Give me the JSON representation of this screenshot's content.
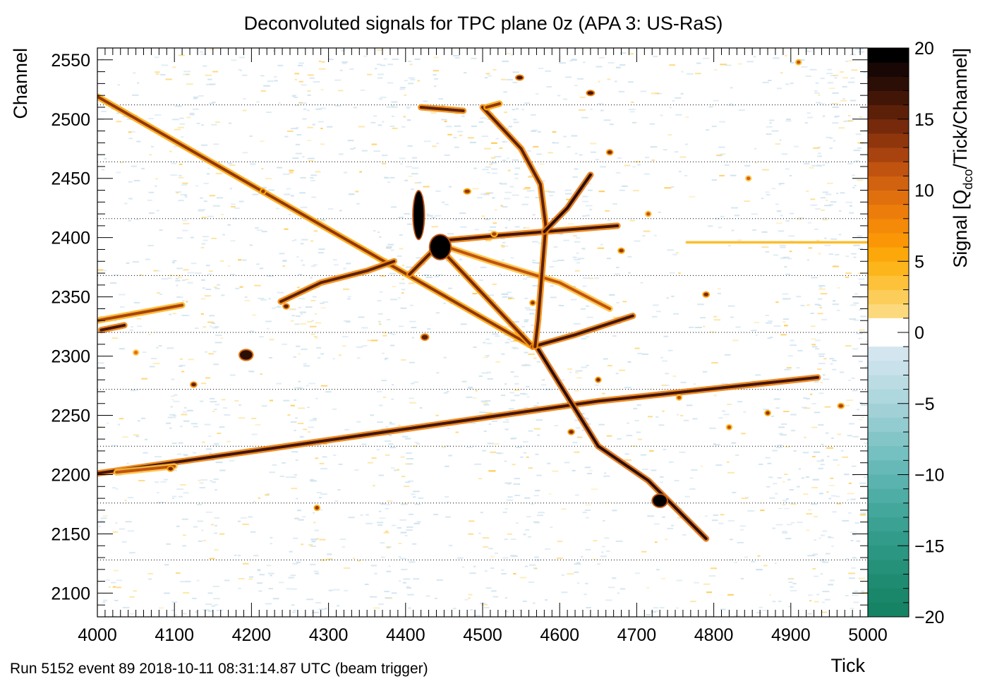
{
  "chart_data": {
    "type": "heatmap",
    "title": "Deconvoluted signals for TPC plane 0z (APA 3: US-RaS)",
    "xlabel": "Tick",
    "ylabel": "Channel",
    "zlabel_main": "Signal [Q",
    "zlabel_sub": "dco",
    "zlabel_rest": "/Tick/Channel]",
    "footer": "Run 5152 event 89 2018-10-11 08:31:14.87 UTC (beam trigger)",
    "xlim": [
      4000,
      5000
    ],
    "ylim": [
      2080,
      2560
    ],
    "zlim": [
      -20,
      20
    ],
    "x_ticks": [
      4000,
      4100,
      4200,
      4300,
      4400,
      4500,
      4600,
      4700,
      4800,
      4900,
      5000
    ],
    "y_ticks": [
      2100,
      2150,
      2200,
      2250,
      2300,
      2350,
      2400,
      2450,
      2500,
      2550
    ],
    "z_ticks": [
      -20,
      -15,
      -10,
      -5,
      0,
      5,
      10,
      15,
      20
    ],
    "dotted_channel_lines": [
      2128,
      2176,
      2224,
      2272,
      2320,
      2368,
      2416,
      2464,
      2512
    ],
    "dead_channel": 2173,
    "palette": {
      "positive": [
        "#fde7a6",
        "#fdd97d",
        "#fdcd5a",
        "#fdc13a",
        "#fdb51c",
        "#fda80a",
        "#fb9707",
        "#f48a08",
        "#ec7d0a",
        "#e0700d",
        "#d1620f",
        "#c05310",
        "#a8430f",
        "#90360d",
        "#762a0b",
        "#5c2009",
        "#421607",
        "#2b0e05",
        "#180704",
        "#000000"
      ],
      "negative": [
        "#dde9f3",
        "#d3e6ef",
        "#c8e1ea",
        "#bcdce4",
        "#afd7de",
        "#a1d1d7",
        "#93ccd0",
        "#84c6c8",
        "#75c0c0",
        "#67b9b7",
        "#5ab3ae",
        "#4eada5",
        "#43a79c",
        "#3aa193",
        "#329b8a",
        "#2b9681",
        "#259179",
        "#1f8c72",
        "#1a876b",
        "#168364"
      ],
      "noise_color": "#cfe3ef"
    },
    "tracks": [
      {
        "points": [
          [
            4000,
            2519
          ],
          [
            4565,
            2308
          ]
        ],
        "intensity": 14
      },
      {
        "points": [
          [
            4000,
            2201
          ],
          [
            4310,
            2230
          ],
          [
            4650,
            2262
          ],
          [
            4935,
            2282
          ]
        ],
        "intensity": 17
      },
      {
        "points": [
          [
            4000,
            2330
          ],
          [
            4110,
            2343
          ]
        ],
        "intensity": 13
      },
      {
        "points": [
          [
            4005,
            2322
          ],
          [
            4035,
            2326
          ]
        ],
        "intensity": 17
      },
      {
        "points": [
          [
            4570,
            2308
          ],
          [
            4650,
            2224
          ],
          [
            4715,
            2195
          ],
          [
            4790,
            2146
          ]
        ],
        "intensity": 18
      },
      {
        "points": [
          [
            4440,
            2394
          ],
          [
            4565,
            2308
          ]
        ],
        "intensity": 15
      },
      {
        "points": [
          [
            4440,
            2397
          ],
          [
            4525,
            2402
          ],
          [
            4675,
            2410
          ]
        ],
        "intensity": 17
      },
      {
        "points": [
          [
            4440,
            2395
          ],
          [
            4510,
            2380
          ],
          [
            4600,
            2362
          ],
          [
            4665,
            2340
          ]
        ],
        "intensity": 12
      },
      {
        "points": [
          [
            4565,
            2308
          ],
          [
            4620,
            2318
          ],
          [
            4695,
            2334
          ]
        ],
        "intensity": 17
      },
      {
        "points": [
          [
            4500,
            2510
          ],
          [
            4550,
            2475
          ],
          [
            4575,
            2445
          ],
          [
            4582,
            2410
          ],
          [
            4572,
            2330
          ],
          [
            4568,
            2308
          ]
        ],
        "intensity": 16
      },
      {
        "points": [
          [
            4580,
            2405
          ],
          [
            4610,
            2425
          ],
          [
            4640,
            2453
          ]
        ],
        "intensity": 18
      },
      {
        "points": [
          [
            4440,
            2392
          ],
          [
            4405,
            2369
          ]
        ],
        "intensity": 16
      },
      {
        "points": [
          [
            4238,
            2346
          ],
          [
            4290,
            2362
          ],
          [
            4350,
            2372
          ],
          [
            4385,
            2380
          ]
        ],
        "intensity": 16
      },
      {
        "points": [
          [
            4420,
            2510
          ],
          [
            4475,
            2507
          ]
        ],
        "intensity": 16
      },
      {
        "points": [
          [
            4522,
            2513
          ],
          [
            4505,
            2510
          ]
        ],
        "intensity": 14
      },
      {
        "points": [
          [
            4025,
            2202
          ],
          [
            4100,
            2207
          ]
        ],
        "intensity": 12
      },
      {
        "points": [
          [
            4765,
            2396
          ],
          [
            5000,
            2396
          ]
        ],
        "intensity": 5
      }
    ],
    "blobs": [
      {
        "x": 4445,
        "y": 2392,
        "w": 26,
        "h": 20,
        "intensity": 20
      },
      {
        "x": 4417,
        "y": 2419,
        "w": 13,
        "h": 40,
        "intensity": 20
      },
      {
        "x": 4193,
        "y": 2301,
        "w": 16,
        "h": 8,
        "intensity": 18
      },
      {
        "x": 4730,
        "y": 2178,
        "w": 18,
        "h": 10,
        "intensity": 20
      },
      {
        "x": 4425,
        "y": 2316,
        "w": 8,
        "h": 4,
        "intensity": 16
      },
      {
        "x": 4548,
        "y": 2535,
        "w": 8,
        "h": 3,
        "intensity": 17
      },
      {
        "x": 4640,
        "y": 2522,
        "w": 8,
        "h": 3,
        "intensity": 17
      },
      {
        "x": 4480,
        "y": 2439,
        "w": 7,
        "h": 3,
        "intensity": 14
      },
      {
        "x": 4515,
        "y": 2403,
        "w": 6,
        "h": 3,
        "intensity": 13
      },
      {
        "x": 4665,
        "y": 2472,
        "w": 6,
        "h": 3,
        "intensity": 15
      },
      {
        "x": 4680,
        "y": 2389,
        "w": 6,
        "h": 3,
        "intensity": 14
      },
      {
        "x": 4615,
        "y": 2236,
        "w": 6,
        "h": 3,
        "intensity": 15
      },
      {
        "x": 4790,
        "y": 2352,
        "w": 6,
        "h": 3,
        "intensity": 15
      },
      {
        "x": 4870,
        "y": 2252,
        "w": 5,
        "h": 3,
        "intensity": 14
      },
      {
        "x": 4755,
        "y": 2265,
        "w": 5,
        "h": 3,
        "intensity": 12
      },
      {
        "x": 4125,
        "y": 2276,
        "w": 6,
        "h": 3,
        "intensity": 16
      },
      {
        "x": 4215,
        "y": 2439,
        "w": 5,
        "h": 3,
        "intensity": 14
      },
      {
        "x": 4285,
        "y": 2172,
        "w": 5,
        "h": 3,
        "intensity": 14
      },
      {
        "x": 4245,
        "y": 2342,
        "w": 6,
        "h": 3,
        "intensity": 16
      },
      {
        "x": 4050,
        "y": 2303,
        "w": 5,
        "h": 3,
        "intensity": 10
      },
      {
        "x": 4650,
        "y": 2280,
        "w": 5,
        "h": 3,
        "intensity": 15
      },
      {
        "x": 4820,
        "y": 2240,
        "w": 5,
        "h": 3,
        "intensity": 12
      },
      {
        "x": 4965,
        "y": 2258,
        "w": 6,
        "h": 3,
        "intensity": 13
      },
      {
        "x": 4715,
        "y": 2420,
        "w": 5,
        "h": 3,
        "intensity": 12
      },
      {
        "x": 4565,
        "y": 2345,
        "w": 5,
        "h": 3,
        "intensity": 14
      },
      {
        "x": 4095,
        "y": 2205,
        "w": 6,
        "h": 3,
        "intensity": 15
      },
      {
        "x": 4845,
        "y": 2450,
        "w": 5,
        "h": 3,
        "intensity": 11
      },
      {
        "x": 4910,
        "y": 2548,
        "w": 5,
        "h": 3,
        "intensity": 12
      }
    ]
  }
}
